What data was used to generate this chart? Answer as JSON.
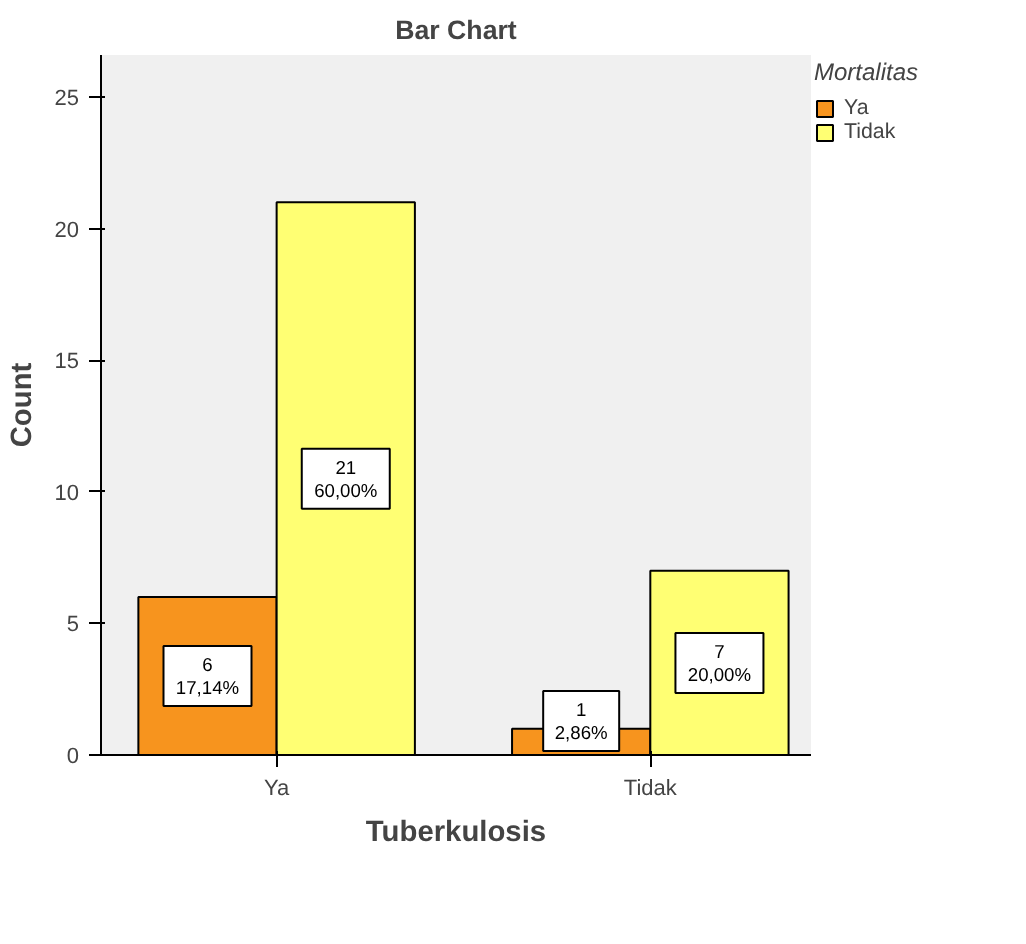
{
  "chart_data": {
    "type": "bar",
    "title": "Bar Chart",
    "xlabel": "Tuberkulosis",
    "ylabel": "Count",
    "legend_title": "Mortalitas",
    "categories": [
      "Ya",
      "Tidak"
    ],
    "series": [
      {
        "name": "Ya",
        "color": "#f7941e",
        "values": [
          6,
          1
        ],
        "value_labels": [
          "6\n17,14%",
          "1\n2,86%"
        ]
      },
      {
        "name": "Tidak",
        "color": "#ffff73",
        "values": [
          21,
          7
        ],
        "value_labels": [
          "21\n60,00%",
          "7\n20,00%"
        ]
      }
    ],
    "ylim": [
      0,
      26.6
    ],
    "yticks": [
      0,
      5,
      10,
      15,
      20,
      25
    ],
    "grid": false,
    "legend": "right"
  }
}
